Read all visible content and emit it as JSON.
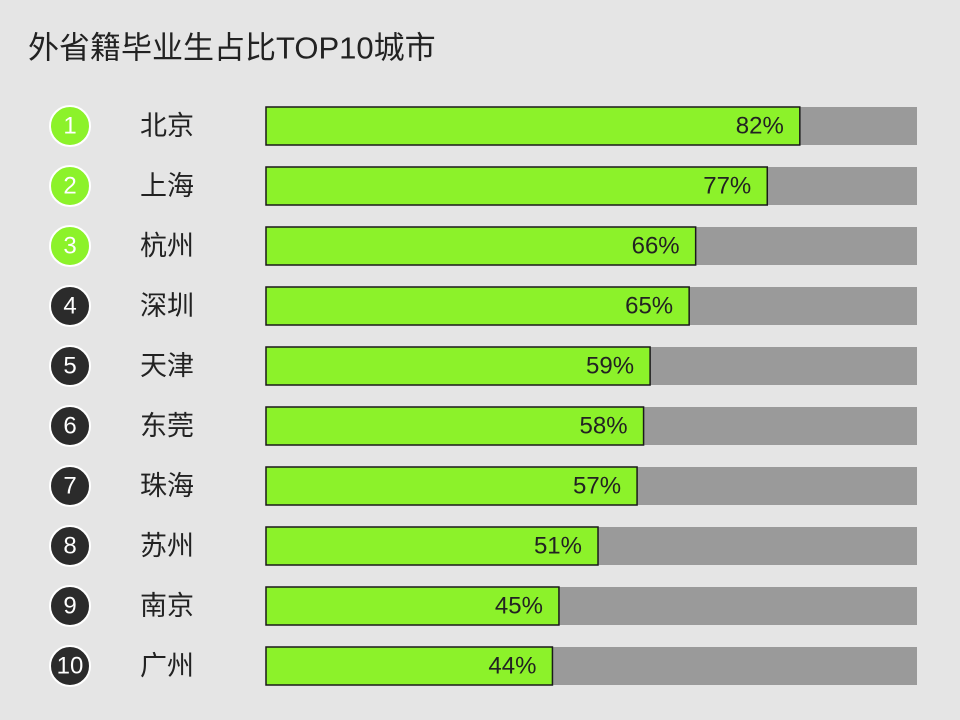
{
  "chart_data": {
    "type": "hbar",
    "title": "外省籍毕业生占比TOP10城市",
    "ranks": [
      1,
      2,
      3,
      4,
      5,
      6,
      7,
      8,
      9,
      10
    ],
    "rank_colors": [
      "#8cf22a",
      "#8cf22a",
      "#8cf22a",
      "#2b2b2b",
      "#2b2b2b",
      "#2b2b2b",
      "#2b2b2b",
      "#2b2b2b",
      "#2b2b2b",
      "#2b2b2b"
    ],
    "categories": [
      "北京",
      "上海",
      "杭州",
      "深圳",
      "天津",
      "东莞",
      "珠海",
      "苏州",
      "南京",
      "广州"
    ],
    "values": [
      82,
      77,
      66,
      65,
      59,
      58,
      57,
      51,
      45,
      44
    ],
    "value_labels": [
      "82%",
      "77%",
      "66%",
      "65%",
      "59%",
      "58%",
      "57%",
      "51%",
      "45%",
      "44%"
    ],
    "xlim": [
      0,
      100
    ],
    "color": "#8cf22a",
    "track_color": "#9a9a9a"
  }
}
